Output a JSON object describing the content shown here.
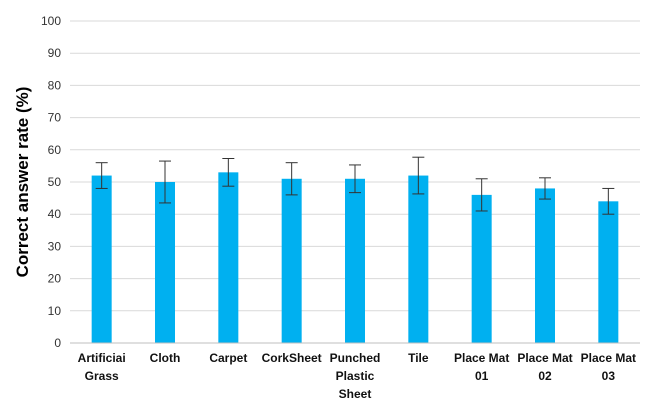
{
  "chart_data": {
    "type": "bar",
    "title": "",
    "xlabel": "",
    "ylabel": "Correct answer rate (%)",
    "ylim": [
      0,
      100
    ],
    "yticks": [
      0,
      10,
      20,
      30,
      40,
      50,
      60,
      70,
      80,
      90,
      100
    ],
    "ytick_labels": [
      "0",
      "10",
      "20",
      "30",
      "40",
      "50",
      "60",
      "70",
      "80",
      "90",
      "100"
    ],
    "grid": true,
    "bar_color": "#00b0f0",
    "grid_color": "#d9d9d9",
    "categories": [
      [
        "Artificiai",
        "Grass"
      ],
      [
        "Cloth"
      ],
      [
        "Carpet"
      ],
      [
        "CorkSheet"
      ],
      [
        "Punched",
        "Plastic",
        "Sheet"
      ],
      [
        "Tile"
      ],
      [
        "Place Mat",
        "01"
      ],
      [
        "Place Mat",
        "02"
      ],
      [
        "Place Mat",
        "03"
      ]
    ],
    "values": [
      52,
      50,
      53,
      51,
      51,
      52,
      46,
      48,
      44
    ],
    "error": [
      4,
      6.5,
      4.3,
      5,
      4.3,
      5.7,
      5,
      3.3,
      4
    ]
  }
}
